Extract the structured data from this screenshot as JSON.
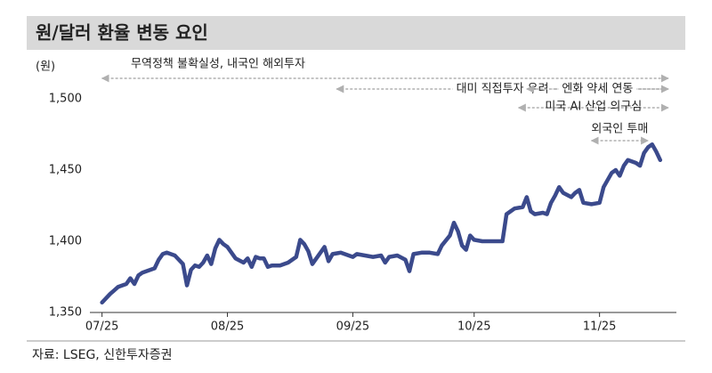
{
  "chart_data": {
    "type": "line",
    "title": "원/달러 환율 변동 요인",
    "y_unit": "(원)",
    "source": "자료: LSEG, 신한투자증권",
    "x": [
      0,
      2,
      4,
      6,
      7,
      8,
      9,
      10,
      12,
      13,
      14,
      15,
      16,
      18,
      20,
      21,
      22,
      23,
      24,
      25,
      26,
      27,
      28,
      29,
      30,
      31,
      33,
      35,
      36,
      37,
      38,
      39,
      40,
      41,
      42,
      44,
      46,
      48,
      49,
      50,
      51,
      52,
      53,
      55,
      56,
      57,
      59,
      62,
      63,
      65,
      67,
      69,
      70,
      71,
      73,
      75,
      76,
      77,
      79,
      81,
      83,
      84,
      86,
      87,
      88,
      89,
      90,
      91,
      92,
      94,
      96,
      98,
      99,
      100,
      101,
      102,
      104,
      105,
      106,
      107,
      109,
      110,
      111,
      112,
      113,
      114,
      116,
      117,
      118,
      119,
      121,
      123,
      124,
      126,
      127,
      128,
      129,
      130,
      132,
      133,
      134,
      135,
      136,
      137,
      138
    ],
    "series": [
      {
        "name": "원/달러 환율",
        "color": "#3b4a8c",
        "values": [
          1357,
          1363,
          1368,
          1370,
          1374,
          1370,
          1376,
          1378,
          1380,
          1381,
          1387,
          1391,
          1392,
          1390,
          1384,
          1369,
          1380,
          1383,
          1382,
          1385,
          1390,
          1384,
          1395,
          1401,
          1398,
          1396,
          1388,
          1385,
          1388,
          1382,
          1389,
          1388,
          1388,
          1382,
          1383,
          1383,
          1385,
          1389,
          1401,
          1398,
          1393,
          1384,
          1388,
          1396,
          1386,
          1391,
          1392,
          1389,
          1391,
          1390,
          1389,
          1390,
          1385,
          1389,
          1390,
          1387,
          1379,
          1391,
          1392,
          1392,
          1391,
          1397,
          1404,
          1413,
          1407,
          1397,
          1394,
          1404,
          1401,
          1400,
          1400,
          1400,
          1400,
          1419,
          1421,
          1423,
          1424,
          1431,
          1421,
          1419,
          1420,
          1419,
          1427,
          1432,
          1438,
          1434,
          1431,
          1434,
          1436,
          1427,
          1426,
          1427,
          1438,
          1448,
          1450,
          1446,
          1453,
          1457,
          1455,
          1453,
          1462,
          1466,
          1468,
          1463,
          1457
        ]
      }
    ],
    "xlim": [
      -3,
      142
    ],
    "xticks": [
      {
        "value": 0,
        "label": "07/25"
      },
      {
        "value": 31,
        "label": "08/25"
      },
      {
        "value": 62,
        "label": "09/25"
      },
      {
        "value": 92,
        "label": "10/25"
      },
      {
        "value": 123,
        "label": "11/25"
      }
    ],
    "ylim": [
      1350,
      1500
    ],
    "yticks": [
      {
        "value": 1350,
        "label": "1,350"
      },
      {
        "value": 1400,
        "label": "1,400"
      },
      {
        "value": 1450,
        "label": "1,450"
      },
      {
        "value": 1500,
        "label": "1,500"
      }
    ],
    "annotations": [
      {
        "text": "무역정책 불확실성, 내국인 해외투자",
        "start": 0,
        "end": 140
      },
      {
        "text": "대미 직접투자 우려",
        "start": 58,
        "end": 140
      },
      {
        "text": "엔화 약세 연동",
        "start": 105,
        "end": 140
      },
      {
        "text": "미국 AI 산업 의구심",
        "start": 103,
        "end": 140
      },
      {
        "text": "외국인 투매",
        "start": 121,
        "end": 135
      }
    ]
  }
}
